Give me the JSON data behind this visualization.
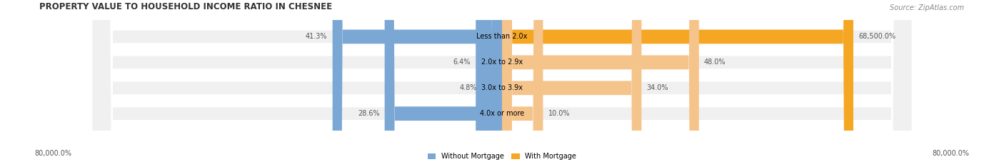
{
  "title": "PROPERTY VALUE TO HOUSEHOLD INCOME RATIO IN CHESNEE",
  "source": "Source: ZipAtlas.com",
  "categories": [
    "Less than 2.0x",
    "2.0x to 2.9x",
    "3.0x to 3.9x",
    "4.0x or more"
  ],
  "without_mortgage": [
    41.3,
    6.4,
    4.8,
    28.6
  ],
  "with_mortgage": [
    68500.0,
    48.0,
    34.0,
    10.0
  ],
  "without_mortgage_label": [
    41.3,
    6.4,
    4.8,
    28.6
  ],
  "with_mortgage_label": [
    "68,500.0%",
    "48.0%",
    "34.0%",
    "10.0%"
  ],
  "without_mortgage_label_str": [
    "41.3%",
    "6.4%",
    "4.8%",
    "28.6%"
  ],
  "x_min": -80000.0,
  "x_max": 80000.0,
  "color_without": "#7ba7d4",
  "color_with": "#f5c48a",
  "color_with_row0": "#f5a623",
  "bar_bg": "#f0f0f0",
  "bar_height": 0.55,
  "legend_without": "Without Mortgage",
  "legend_with": "With Mortgage",
  "xlabel_left": "80,000.0%",
  "xlabel_right": "80,000.0%"
}
